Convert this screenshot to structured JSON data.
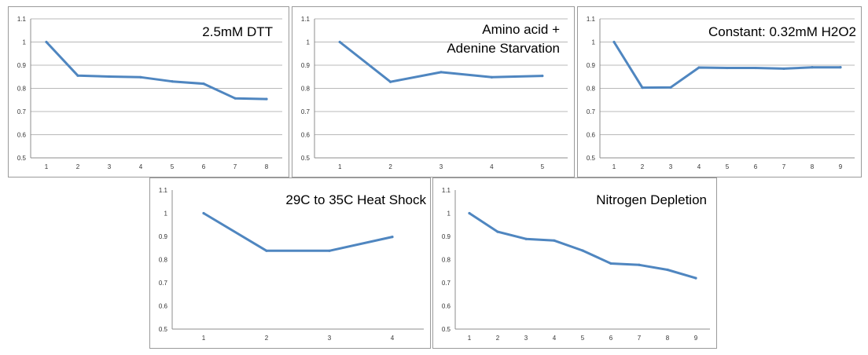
{
  "chart_data": [
    {
      "type": "line",
      "title": "2.5mM DTT",
      "x": [
        1,
        2,
        3,
        4,
        5,
        6,
        7,
        8
      ],
      "series": [
        {
          "values": [
            1.0,
            0.855,
            0.851,
            0.848,
            0.83,
            0.82,
            0.757,
            0.754
          ]
        }
      ],
      "ylim": [
        0.5,
        1.1
      ],
      "yticks": [
        "0.5",
        "0.6",
        "0.7",
        "0.8",
        "0.9",
        "1",
        "1.1"
      ],
      "grid": true,
      "color": "#4f86c0"
    },
    {
      "type": "line",
      "title": "Amino acid + Adenine Starvation",
      "title_lines": [
        "Amino acid +",
        "Adenine Starvation"
      ],
      "x": [
        1,
        2,
        3,
        4,
        5
      ],
      "series": [
        {
          "values": [
            1.0,
            0.828,
            0.87,
            0.848,
            0.854
          ]
        }
      ],
      "ylim": [
        0.5,
        1.1
      ],
      "yticks": [
        "0.5",
        "0.6",
        "0.7",
        "0.8",
        "0.9",
        "1",
        "1.1"
      ],
      "grid": true,
      "color": "#4f86c0"
    },
    {
      "type": "line",
      "title": "Constant:  0.32mM H2O2",
      "x": [
        1,
        2,
        3,
        4,
        5,
        6,
        7,
        8,
        9
      ],
      "series": [
        {
          "values": [
            1.0,
            0.803,
            0.804,
            0.89,
            0.888,
            0.888,
            0.885,
            0.891,
            0.891
          ]
        }
      ],
      "ylim": [
        0.5,
        1.1
      ],
      "yticks": [
        "0.5",
        "0.6",
        "0.7",
        "0.8",
        "0.9",
        "1",
        "1.1"
      ],
      "grid": true,
      "color": "#4f86c0"
    },
    {
      "type": "line",
      "title": "29C to 35C Heat Shock",
      "x": [
        1,
        2,
        3,
        4
      ],
      "series": [
        {
          "values": [
            1.0,
            0.838,
            0.838,
            0.898
          ]
        }
      ],
      "ylim": [
        0.5,
        1.1
      ],
      "yticks": [
        "0.5",
        "0.6",
        "0.7",
        "0.8",
        "0.9",
        "1",
        "1.1"
      ],
      "grid": false,
      "color": "#4f86c0"
    },
    {
      "type": "line",
      "title": "Nitrogen Depletion",
      "x": [
        1,
        2,
        3,
        4,
        5,
        6,
        7,
        8,
        9
      ],
      "series": [
        {
          "values": [
            1.0,
            0.92,
            0.889,
            0.882,
            0.839,
            0.783,
            0.777,
            0.756,
            0.72
          ]
        }
      ],
      "ylim": [
        0.5,
        1.1
      ],
      "yticks": [
        "0.5",
        "0.6",
        "0.7",
        "0.8",
        "0.9",
        "1",
        "1.1"
      ],
      "grid": false,
      "color": "#4f86c0"
    }
  ]
}
